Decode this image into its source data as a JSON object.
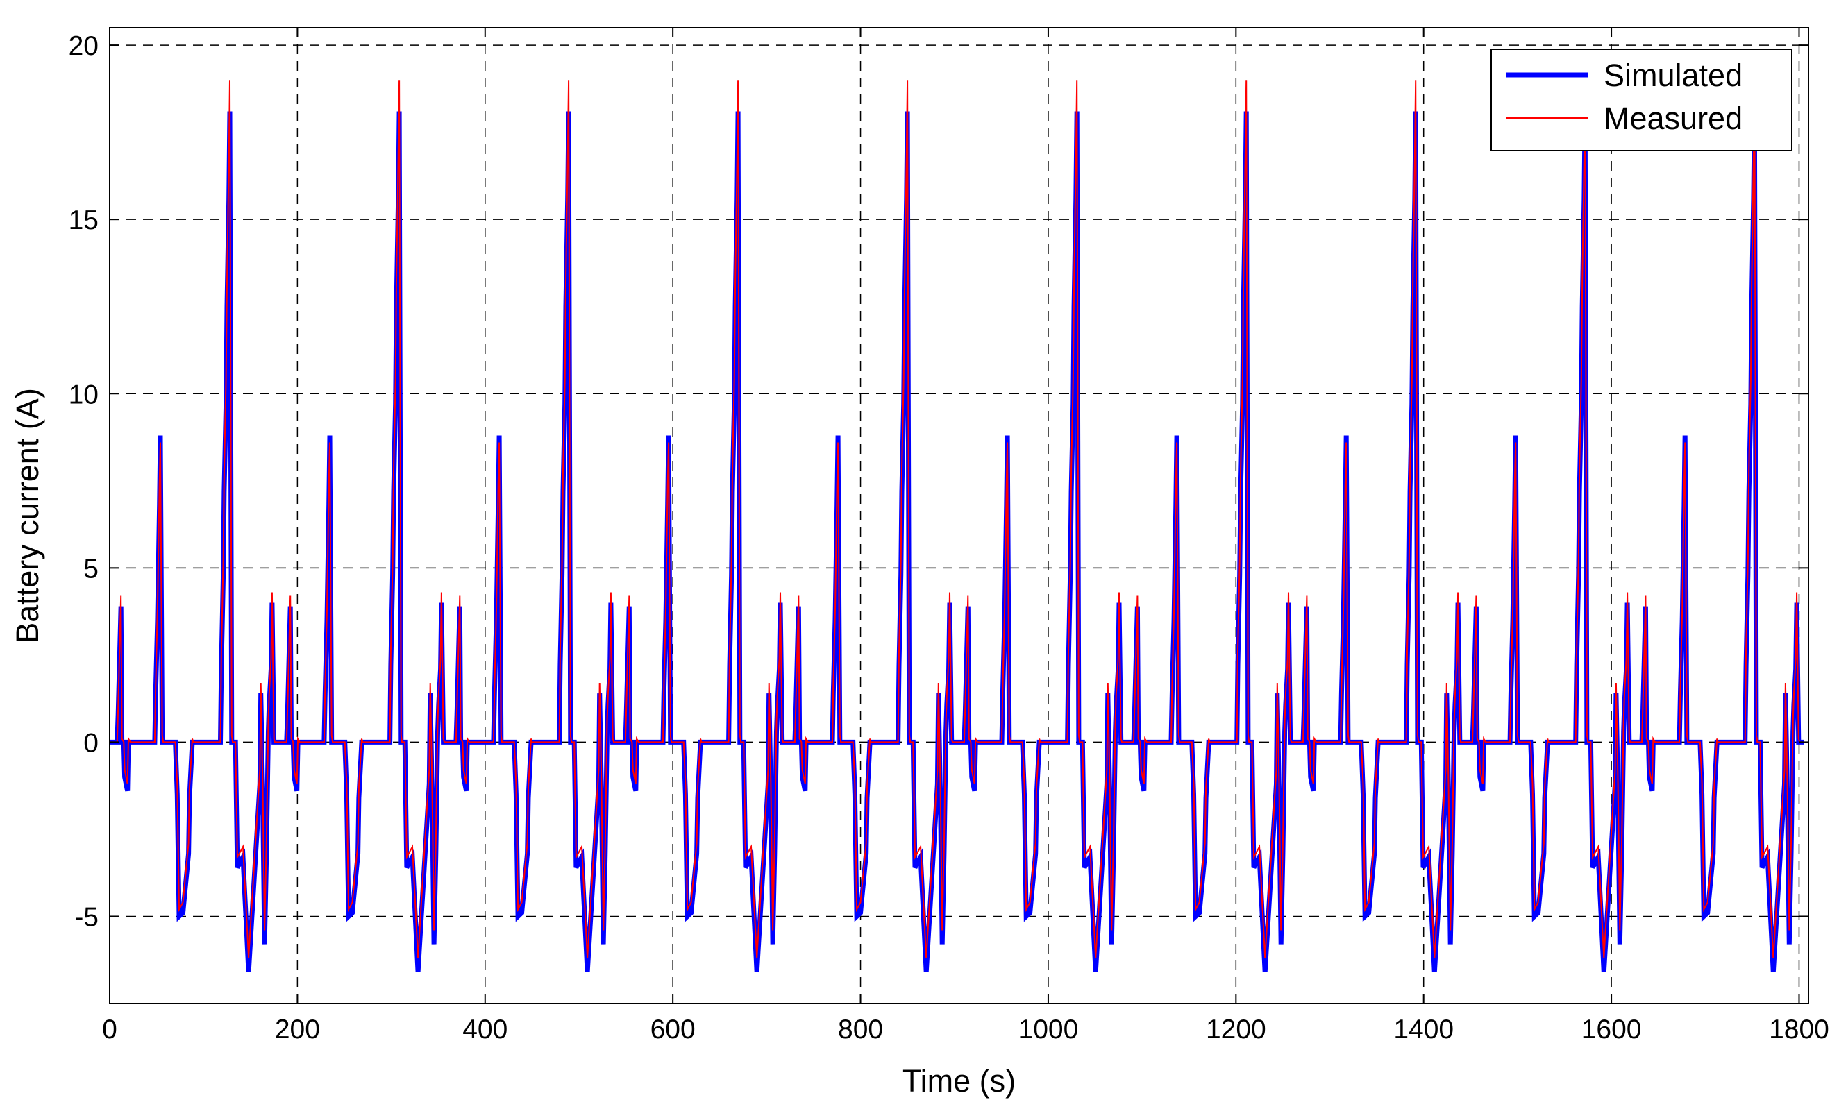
{
  "chart_data": {
    "type": "line",
    "title": "",
    "xlabel": "Time (s)",
    "ylabel": "Battery current (A)",
    "xlim": [
      0,
      1810
    ],
    "ylim": [
      -7.5,
      20.5
    ],
    "xticks": [
      0,
      200,
      400,
      600,
      800,
      1000,
      1200,
      1400,
      1600,
      1800
    ],
    "yticks": [
      -5,
      0,
      5,
      10,
      15,
      20
    ],
    "grid": "dashed",
    "legend_position": "top-right",
    "series": [
      {
        "name": "Simulated",
        "color": "#0000ff",
        "cycle_period": 180.5,
        "cycles": 10,
        "cycle_profile_x": [
          0,
          8,
          9,
          12,
          13,
          15,
          16,
          19,
          20,
          22,
          23,
          26,
          28,
          29,
          31,
          48,
          49,
          51,
          53,
          54,
          56,
          57,
          60,
          61,
          62,
          63,
          66,
          67,
          69,
          70,
          72,
          74,
          78,
          84,
          85,
          88,
          89,
          91,
          92,
          94,
          96,
          98,
          118,
          119,
          121,
          122,
          124,
          125,
          127,
          128,
          130,
          131,
          133,
          134,
          136,
          138,
          140,
          142,
          148,
          160,
          161,
          163,
          165,
          167,
          169,
          170,
          172,
          173,
          175,
          176,
          178,
          180.5
        ],
        "cycle_profile_y": [
          0,
          0,
          0.8,
          3.9,
          0,
          0,
          -1.0,
          -1.4,
          0,
          0,
          0,
          0,
          0,
          0,
          0,
          0,
          1.4,
          3.5,
          6.8,
          8.8,
          0,
          0,
          0,
          0,
          0,
          0,
          0,
          0,
          0,
          0,
          -1.5,
          -5.0,
          -4.9,
          -3.2,
          -1.6,
          0,
          0,
          0,
          0,
          0,
          0,
          0,
          0,
          2.2,
          4.8,
          7.2,
          9.7,
          12.5,
          15.6,
          18.1,
          0,
          0,
          0,
          0,
          -3.6,
          -3.5,
          -3.4,
          -3.3,
          -6.6,
          -1.2,
          1.4,
          -1.5,
          -5.8,
          -3.2,
          0.3,
          1.1,
          2.1,
          4.0,
          0,
          0,
          0,
          0
        ]
      },
      {
        "name": "Measured",
        "color": "#ff0000",
        "cycle_period": 180.5,
        "cycles": 10,
        "cycle_profile_x": [
          0,
          8,
          9,
          12,
          13,
          15,
          16,
          19,
          20,
          22,
          23,
          26,
          28,
          29,
          31,
          48,
          49,
          51,
          53,
          54,
          56,
          57,
          60,
          61,
          62,
          63,
          66,
          67,
          69,
          70,
          72,
          74,
          78,
          84,
          85,
          88,
          89,
          91,
          92,
          94,
          96,
          98,
          118,
          119,
          121,
          122,
          124,
          125,
          127,
          128,
          130,
          131,
          133,
          134,
          136,
          138,
          140,
          142,
          148,
          160,
          161,
          163,
          165,
          167,
          169,
          170,
          172,
          173,
          175,
          176,
          178,
          180.5
        ],
        "cycle_profile_y": [
          0,
          0,
          1.0,
          4.2,
          0.1,
          0,
          -0.8,
          -1.2,
          0.1,
          0,
          0,
          0,
          0,
          0,
          0,
          0,
          1.6,
          3.8,
          7.4,
          8.6,
          0.2,
          0,
          0,
          0,
          0,
          0,
          0,
          0,
          0,
          0,
          -1.2,
          -4.8,
          -4.6,
          -2.9,
          -1.3,
          0.1,
          0,
          0,
          0,
          0,
          0,
          0,
          0,
          2.6,
          5.2,
          7.8,
          10.4,
          13.2,
          16.8,
          19.0,
          0.2,
          0,
          0,
          0,
          -3.3,
          -3.2,
          -3.1,
          -3.0,
          -6.2,
          -0.8,
          1.7,
          -1.2,
          -5.4,
          -2.9,
          0.6,
          1.4,
          2.4,
          4.3,
          0.1,
          0,
          0,
          0
        ]
      }
    ]
  }
}
